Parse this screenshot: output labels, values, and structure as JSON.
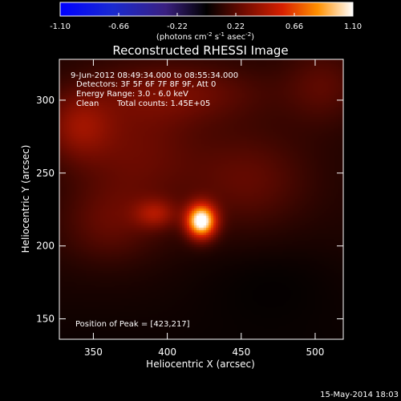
{
  "chart_data": {
    "type": "heatmap",
    "title": "Reconstructed RHESSI Image",
    "xlabel": "Heliocentric X (arcsec)",
    "ylabel": "Heliocentric Y (arcsec)",
    "xlim": [
      327,
      519
    ],
    "ylim": [
      136,
      328
    ],
    "xticks": [
      350,
      400,
      450,
      500
    ],
    "yticks": [
      150,
      200,
      250,
      300
    ],
    "colorbar": {
      "ticks": [
        "-1.10",
        "-0.66",
        "-0.22",
        "0.22",
        "0.66",
        "1.10"
      ],
      "range": [
        -1.1,
        1.1
      ],
      "unit_text": "(photons cm",
      "unit_exp1": "-2",
      "unit_mid": " s",
      "unit_exp2": "-1",
      "unit_mid2": " asec",
      "unit_exp3": "-2",
      "unit_close": ")"
    },
    "annotations": [
      "9-Jun-2012 08:49:34.000 to 08:55:34.000",
      "Detectors: 3F 5F 6F 7F 8F 9F, Att 0",
      "Energy Range: 3.0 - 6.0 keV"
    ],
    "clean_label": "Clean",
    "total_counts": "Total counts: 1.45E+05",
    "peak_text": "Position of Peak = [423,217]",
    "peak": [
      423,
      217
    ],
    "sources": [
      {
        "x": 423,
        "y": 217,
        "value": 1.08,
        "sx": 7,
        "sy": 8
      },
      {
        "x": 392,
        "y": 222,
        "value": 0.28,
        "sx": 10,
        "sy": 7
      },
      {
        "x": 340,
        "y": 282,
        "value": 0.26,
        "sx": 16,
        "sy": 16
      },
      {
        "x": 380,
        "y": 265,
        "value": 0.18,
        "sx": 30,
        "sy": 30
      },
      {
        "x": 455,
        "y": 245,
        "value": 0.16,
        "sx": 28,
        "sy": 24
      },
      {
        "x": 410,
        "y": 305,
        "value": 0.18,
        "sx": 40,
        "sy": 14
      },
      {
        "x": 505,
        "y": 310,
        "value": 0.14,
        "sx": 18,
        "sy": 18
      },
      {
        "x": 360,
        "y": 215,
        "value": 0.14,
        "sx": 22,
        "sy": 18
      },
      {
        "x": 470,
        "y": 180,
        "value": -0.05,
        "sx": 40,
        "sy": 25
      }
    ],
    "background": 0.08,
    "footer_date": "15-May-2014 18:03"
  }
}
